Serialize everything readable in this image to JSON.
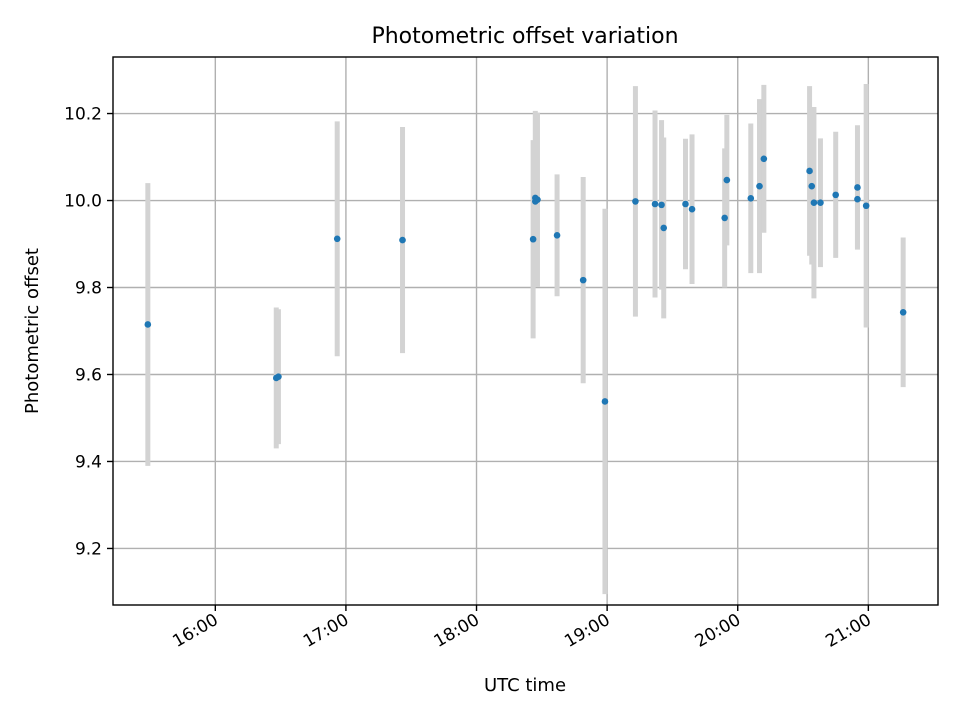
{
  "chart_data": {
    "type": "scatter",
    "title": "Photometric offset variation",
    "xlabel": "UTC time",
    "ylabel": "Photometric offset",
    "x_tick_labels": [
      "16:00",
      "17:00",
      "18:00",
      "19:00",
      "20:00",
      "21:00"
    ],
    "y_tick_labels": [
      "9.2",
      "9.4",
      "9.6",
      "9.8",
      "10.0",
      "10.2"
    ],
    "xlim": [
      "15:13",
      "21:32"
    ],
    "ylim": [
      9.07,
      10.33
    ],
    "grid": true,
    "colors": {
      "point": "#1f77b4",
      "errorbar": "#d3d3d3"
    },
    "series": [
      {
        "points": [
          {
            "x": "15:29",
            "y": 9.715,
            "err": 0.325
          },
          {
            "x": "16:28",
            "y": 9.592,
            "err": 0.162
          },
          {
            "x": "16:29",
            "y": 9.595,
            "err": 0.155
          },
          {
            "x": "16:56",
            "y": 9.912,
            "err": 0.27
          },
          {
            "x": "17:26",
            "y": 9.909,
            "err": 0.26
          },
          {
            "x": "18:26",
            "y": 9.911,
            "err": 0.228
          },
          {
            "x": "18:27",
            "y": 9.998,
            "err": 0.14
          },
          {
            "x": "18:27",
            "y": 10.006,
            "err": 0.2
          },
          {
            "x": "18:28",
            "y": 10.002,
            "err": 0.2
          },
          {
            "x": "18:37",
            "y": 9.92,
            "err": 0.14
          },
          {
            "x": "18:49",
            "y": 9.817,
            "err": 0.237
          },
          {
            "x": "18:59",
            "y": 9.538,
            "err": 0.443
          },
          {
            "x": "19:13",
            "y": 9.998,
            "err": 0.265
          },
          {
            "x": "19:22",
            "y": 9.992,
            "err": 0.215
          },
          {
            "x": "19:25",
            "y": 9.99,
            "err": 0.195
          },
          {
            "x": "19:26",
            "y": 9.937,
            "err": 0.208
          },
          {
            "x": "19:36",
            "y": 9.992,
            "err": 0.15
          },
          {
            "x": "19:39",
            "y": 9.98,
            "err": 0.172
          },
          {
            "x": "19:54",
            "y": 9.96,
            "err": 0.16
          },
          {
            "x": "19:55",
            "y": 10.047,
            "err": 0.15
          },
          {
            "x": "20:06",
            "y": 10.005,
            "err": 0.172
          },
          {
            "x": "20:10",
            "y": 10.033,
            "err": 0.2
          },
          {
            "x": "20:12",
            "y": 10.096,
            "err": 0.17
          },
          {
            "x": "20:33",
            "y": 10.068,
            "err": 0.195
          },
          {
            "x": "20:34",
            "y": 10.033,
            "err": 0.18
          },
          {
            "x": "20:35",
            "y": 9.995,
            "err": 0.22
          },
          {
            "x": "20:38",
            "y": 9.995,
            "err": 0.148
          },
          {
            "x": "20:45",
            "y": 10.013,
            "err": 0.145
          },
          {
            "x": "20:55",
            "y": 10.03,
            "err": 0.143
          },
          {
            "x": "20:55",
            "y": 10.003,
            "err": 0.113
          },
          {
            "x": "20:59",
            "y": 9.988,
            "err": 0.28
          },
          {
            "x": "21:16",
            "y": 9.743,
            "err": 0.172
          }
        ]
      }
    ]
  }
}
